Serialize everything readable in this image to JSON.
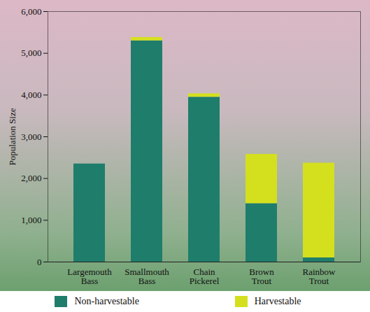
{
  "chart_data": {
    "type": "bar",
    "stacked": true,
    "legend": "bottom",
    "y_label": "Population Size",
    "categories": [
      "Largemouth Bass",
      "Smallmouth Bass",
      "Chain Pickerel",
      "Brown Trout",
      "Rainbow Trout"
    ],
    "series": [
      {
        "name": "Non-harvestable",
        "color": "#1f7d6b",
        "values": [
          2350,
          5300,
          3950,
          1400,
          100
        ]
      },
      {
        "name": "Harvestable",
        "color": "#d4e01e",
        "values": [
          0,
          80,
          80,
          1180,
          2270
        ]
      }
    ],
    "ylim": [
      0,
      6000
    ],
    "yticks": [
      0,
      {
        "value": 1000,
        "label": "1,000"
      },
      {
        "value": 2000,
        "label": "2,000"
      },
      {
        "value": 3000,
        "label": "3,000"
      },
      {
        "value": 4000,
        "label": "4,000"
      },
      {
        "value": 5000,
        "label": "5,000"
      },
      {
        "value": 6000,
        "label": "6,000"
      }
    ],
    "grid": false
  }
}
